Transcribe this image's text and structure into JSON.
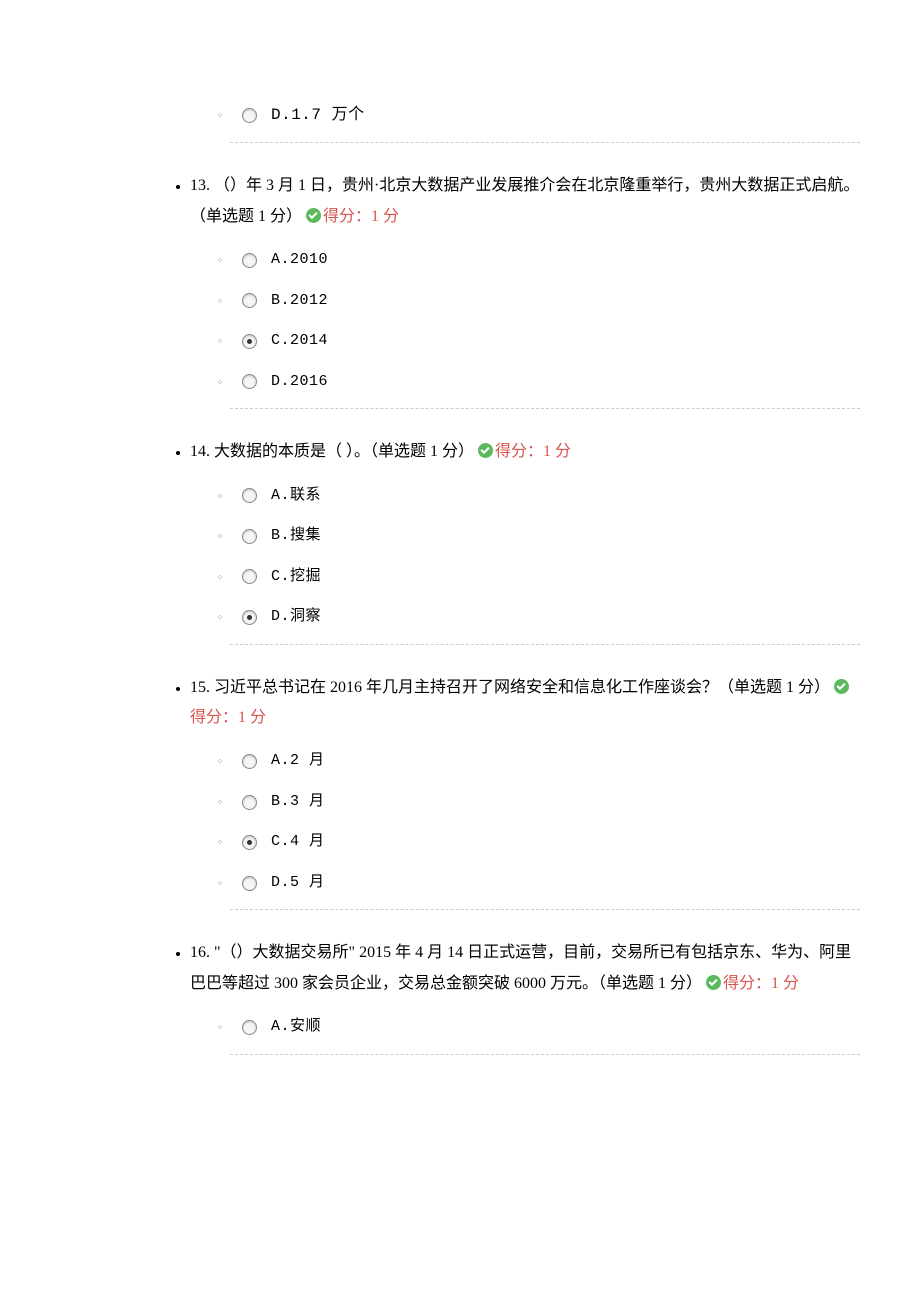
{
  "orphan_option": {
    "label": "D.1.7 万个",
    "selected": false
  },
  "score_label": "得分：1 分",
  "questions": [
    {
      "number": "13.",
      "text": "（）年 3 月 1 日，贵州·北京大数据产业发展推介会在北京隆重举行，贵州大数据正式启航。（单选题 1 分）",
      "options": [
        {
          "label": "A.2010",
          "selected": false
        },
        {
          "label": "B.2012",
          "selected": false
        },
        {
          "label": "C.2014",
          "selected": true
        },
        {
          "label": "D.2016",
          "selected": false
        }
      ]
    },
    {
      "number": "14.",
      "text": "大数据的本质是（ ）。（单选题 1 分）",
      "options": [
        {
          "label": "A.联系",
          "selected": false
        },
        {
          "label": "B.搜集",
          "selected": false
        },
        {
          "label": "C.挖掘",
          "selected": false
        },
        {
          "label": "D.洞察",
          "selected": true
        }
      ]
    },
    {
      "number": "15.",
      "text": "习近平总书记在 2016 年几月主持召开了网络安全和信息化工作座谈会？（单选题 1 分）",
      "options": [
        {
          "label": "A.2 月",
          "selected": false
        },
        {
          "label": "B.3 月",
          "selected": false
        },
        {
          "label": "C.4 月",
          "selected": true
        },
        {
          "label": "D.5 月",
          "selected": false
        }
      ]
    },
    {
      "number": "16.",
      "text": "\"（）大数据交易所\" 2015 年 4 月 14 日正式运营，目前，交易所已有包括京东、华为、阿里巴巴等超过 300 家会员企业，交易总金额突破 6000 万元。（单选题 1 分）",
      "options": [
        {
          "label": "A.安顺",
          "selected": false
        }
      ]
    }
  ]
}
